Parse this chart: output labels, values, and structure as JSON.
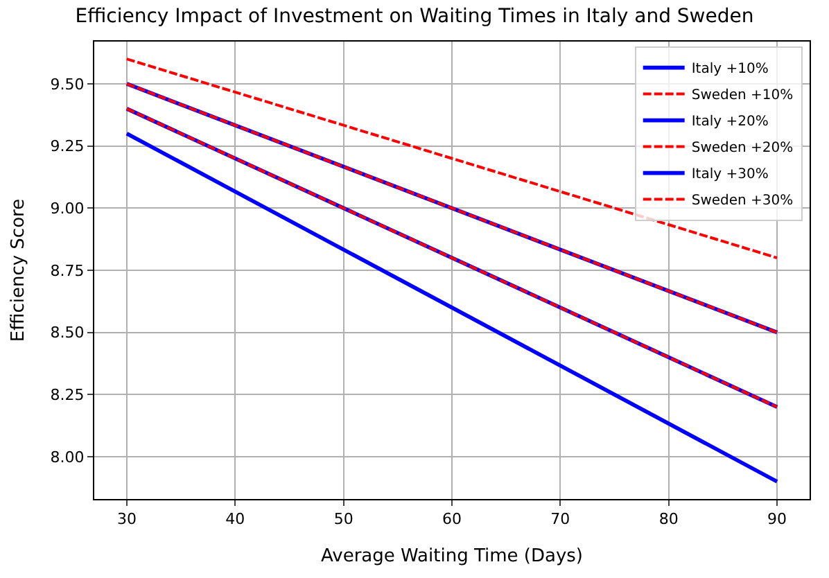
{
  "chart_data": {
    "type": "line",
    "title": "Efficiency Impact of Investment on Waiting Times in Italy and Sweden",
    "xlabel": "Average Waiting Time (Days)",
    "ylabel": "Efficiency Score",
    "x": [
      30,
      90
    ],
    "series": [
      {
        "name": "Italy +10%",
        "color": "#0000ff",
        "line_style": "solid",
        "values": [
          9.3,
          7.9
        ]
      },
      {
        "name": "Sweden +10%",
        "color": "#ff0000",
        "line_style": "dashed",
        "values": [
          9.4,
          8.2
        ]
      },
      {
        "name": "Italy +20%",
        "color": "#0000ff",
        "line_style": "solid",
        "values": [
          9.4,
          8.2
        ]
      },
      {
        "name": "Sweden +20%",
        "color": "#ff0000",
        "line_style": "dashed",
        "values": [
          9.5,
          8.5
        ]
      },
      {
        "name": "Italy +30%",
        "color": "#0000ff",
        "line_style": "solid",
        "values": [
          9.5,
          8.5
        ]
      },
      {
        "name": "Sweden +30%",
        "color": "#ff0000",
        "line_style": "dashed",
        "values": [
          9.6,
          8.8
        ]
      }
    ],
    "xlim": [
      27,
      93
    ],
    "ylim": [
      7.83,
      9.67
    ],
    "xticks": [
      30,
      40,
      50,
      60,
      70,
      80,
      90
    ],
    "yticks": [
      {
        "value": 8.0,
        "label": "8.00"
      },
      {
        "value": 8.25,
        "label": "8.25"
      },
      {
        "value": 8.5,
        "label": "8.50"
      },
      {
        "value": 8.75,
        "label": "8.75"
      },
      {
        "value": 9.0,
        "label": "9.00"
      },
      {
        "value": 9.25,
        "label": "9.25"
      },
      {
        "value": 9.5,
        "label": "9.50"
      }
    ],
    "grid": true,
    "legend": "top right",
    "marker": "none"
  }
}
